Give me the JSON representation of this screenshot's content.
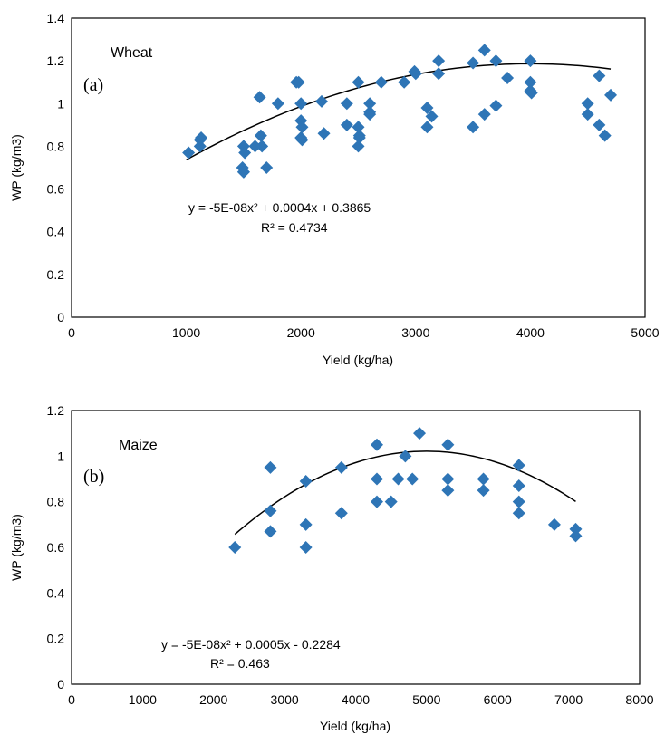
{
  "chart_data": [
    {
      "type": "scatter",
      "panel_label": "(a)",
      "crop_label": "Wheat",
      "xlabel": "Yield (kg/ha)",
      "ylabel": "WP (kg/m3)",
      "xlim": [
        0,
        5000
      ],
      "ylim": [
        0,
        1.4
      ],
      "xticks": [
        0,
        1000,
        2000,
        3000,
        4000,
        5000
      ],
      "yticks": [
        0,
        0.2,
        0.4,
        0.6,
        0.8,
        1,
        1.2,
        1.4
      ],
      "xtick_labels": [
        "0",
        "1000",
        "2000",
        "3000",
        "4000",
        "5000"
      ],
      "ytick_labels": [
        "0",
        "0.2",
        "0.4",
        "0.6",
        "0.8",
        "1",
        "1.2",
        "1.4"
      ],
      "grid": false,
      "marker_color": "#2e75b6",
      "trendline": {
        "type": "polynomial",
        "a": -5e-08,
        "b": 0.0004,
        "c": 0.3865,
        "x_range": [
          1000,
          4700
        ]
      },
      "equation": "y = -5E-08x² + 0.0004x + 0.3865",
      "r2": "R² = 0.4734",
      "x": [
        1020,
        1120,
        1130,
        1120,
        1500,
        1510,
        1490,
        1500,
        1500,
        1600,
        1640,
        1650,
        1660,
        1700,
        1800,
        1960,
        1980,
        2000,
        2000,
        2010,
        2000,
        2010,
        2180,
        2200,
        2400,
        2400,
        2500,
        2500,
        2510,
        2500,
        2510,
        2600,
        2600,
        2600,
        2700,
        2900,
        2990,
        3000,
        3100,
        3100,
        3140,
        3200,
        3200,
        3500,
        3500,
        3600,
        3600,
        3700,
        3700,
        3800,
        4000,
        4000,
        4000,
        4010,
        4500,
        4500,
        4600,
        4600,
        4650,
        4700
      ],
      "y": [
        0.77,
        0.8,
        0.84,
        0.83,
        0.8,
        0.77,
        0.7,
        0.68,
        0.68,
        0.8,
        1.03,
        0.85,
        0.8,
        0.7,
        1.0,
        1.1,
        1.1,
        1.0,
        0.92,
        0.89,
        0.84,
        0.83,
        1.01,
        0.86,
        1.0,
        0.9,
        1.1,
        0.89,
        0.85,
        0.8,
        0.84,
        1.0,
        0.96,
        0.95,
        1.1,
        1.1,
        1.15,
        1.14,
        0.98,
        0.89,
        0.94,
        1.2,
        1.14,
        1.19,
        0.89,
        1.25,
        0.95,
        1.2,
        0.99,
        1.12,
        1.2,
        1.1,
        1.06,
        1.05,
        1.0,
        0.95,
        1.13,
        0.9,
        0.85,
        1.04
      ]
    },
    {
      "type": "scatter",
      "panel_label": "(b)",
      "crop_label": "Maize",
      "xlabel": "Yield (kg/ha)",
      "ylabel": "WP (kg/m3)",
      "xlim": [
        0,
        8000
      ],
      "ylim": [
        0,
        1.2
      ],
      "xticks": [
        0,
        1000,
        2000,
        3000,
        4000,
        5000,
        6000,
        7000,
        8000
      ],
      "yticks": [
        0,
        0.2,
        0.4,
        0.6,
        0.8,
        1,
        1.2
      ],
      "xtick_labels": [
        "0",
        "1000",
        "2000",
        "3000",
        "4000",
        "5000",
        "6000",
        "7000",
        "8000"
      ],
      "ytick_labels": [
        "0",
        "0.2",
        "0.4",
        "0.6",
        "0.8",
        "1",
        "1.2"
      ],
      "grid": false,
      "marker_color": "#2e75b6",
      "trendline": {
        "type": "polynomial",
        "a": -5e-08,
        "b": 0.0005,
        "c": -0.2284,
        "x_range": [
          2300,
          7100
        ]
      },
      "equation": "y = -5E-08x² + 0.0005x - 0.2284",
      "r2": "R² = 0.463",
      "x": [
        2300,
        2800,
        2800,
        2800,
        3300,
        3300,
        3300,
        3800,
        3800,
        4300,
        4300,
        4300,
        4500,
        4600,
        4700,
        4800,
        4900,
        5300,
        5300,
        5300,
        5800,
        5800,
        6300,
        6300,
        6300,
        6300,
        6800,
        7100,
        7100
      ],
      "y": [
        0.6,
        0.95,
        0.76,
        0.67,
        0.89,
        0.7,
        0.6,
        0.95,
        0.75,
        1.05,
        0.9,
        0.8,
        0.8,
        0.9,
        1.0,
        0.9,
        1.1,
        1.05,
        0.9,
        0.85,
        0.9,
        0.85,
        0.96,
        0.87,
        0.8,
        0.75,
        0.7,
        0.68,
        0.65
      ]
    }
  ]
}
